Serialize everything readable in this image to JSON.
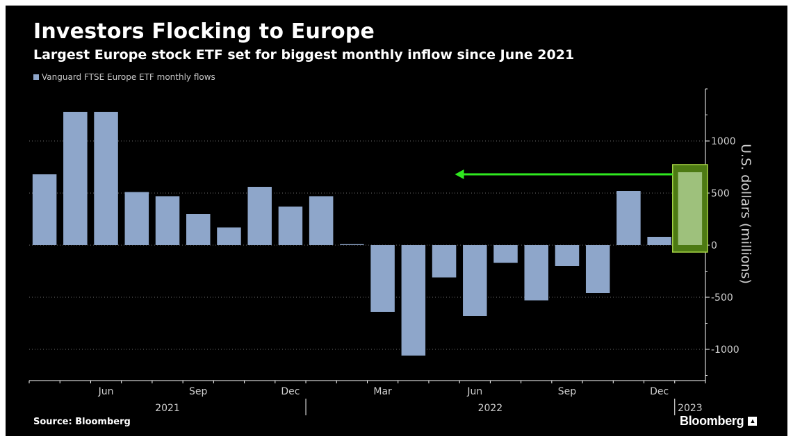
{
  "title": "Investors Flocking to Europe",
  "subtitle": "Largest Europe stock ETF set for biggest monthly inflow since June 2021",
  "legend": {
    "label": "Vanguard FTSE Europe ETF monthly flows",
    "color": "#8ea6ca"
  },
  "source": "Source: Bloomberg",
  "brand": "Bloomberg",
  "colors": {
    "background": "#000000",
    "bar": "#8ea6ca",
    "highlight_bar": "#9ec17c",
    "highlight_box": "#4d7a13",
    "highlight_border": "#a8d645",
    "arrow": "#2fe81f",
    "grid": "#6e6e6e",
    "axis_text": "#cfcfcf"
  },
  "chart_data": {
    "type": "bar",
    "categories": [
      "Apr 2021",
      "May 2021",
      "Jun 2021",
      "Jul 2021",
      "Aug 2021",
      "Sep 2021",
      "Oct 2021",
      "Nov 2021",
      "Dec 2021",
      "Jan 2022",
      "Feb 2022",
      "Mar 2022",
      "Apr 2022",
      "May 2022",
      "Jun 2022",
      "Jul 2022",
      "Aug 2022",
      "Sep 2022",
      "Oct 2022",
      "Nov 2022",
      "Dec 2022",
      "Jan 2023"
    ],
    "series": [
      {
        "values": [
          680,
          1280,
          1280,
          510,
          470,
          300,
          170,
          560,
          370,
          470,
          10,
          -640,
          -1060,
          -310,
          -680,
          -170,
          -530,
          -200,
          -460,
          520,
          80,
          700
        ]
      }
    ],
    "ylabel": "U.S. dollars (millions)",
    "ylim": [
      -1300,
      1500
    ],
    "yticks": [
      1000,
      500,
      0,
      -500,
      -1000
    ],
    "ytick_labels": [
      "1000",
      "500",
      "0",
      "-500",
      "-1000"
    ],
    "x_ticks": [
      {
        "index": 2,
        "label": "Jun"
      },
      {
        "index": 5,
        "label": "Sep"
      },
      {
        "index": 8,
        "label": "Dec"
      },
      {
        "index": 11,
        "label": "Mar"
      },
      {
        "index": 14,
        "label": "Jun"
      },
      {
        "index": 17,
        "label": "Sep"
      },
      {
        "index": 20,
        "label": "Dec"
      }
    ],
    "year_labels": [
      {
        "from": 0,
        "to": 8,
        "label": "2021"
      },
      {
        "from": 9,
        "to": 20,
        "label": "2022"
      },
      {
        "from": 21,
        "to": 21,
        "label": "2023"
      }
    ],
    "highlight_index": 21,
    "arrow_from_index": 21,
    "arrow_to_index": 13,
    "arrow_value": 680,
    "grid": true,
    "legend_position": "top-left"
  }
}
